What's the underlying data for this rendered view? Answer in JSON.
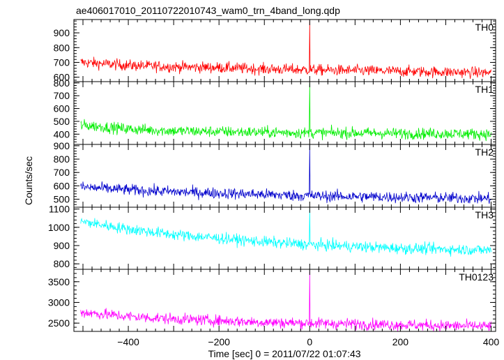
{
  "chart_data": {
    "type": "line",
    "title": "ae406017010_20110722010743_wam0_trn_4band_long.qdp",
    "xlabel": "Time [sec] 0 = 2011/07/22 01:07:43",
    "ylabel": "Counts/sec",
    "xlim": [
      -520,
      410
    ],
    "xticks": [
      -400,
      -200,
      0,
      200,
      400
    ],
    "grid": false,
    "panels": [
      {
        "name": "TH0",
        "color": "#ff0000",
        "ylim": [
          570,
          990
        ],
        "yticks": [
          600,
          700,
          800,
          900
        ],
        "spike": {
          "x": 0,
          "y": 980
        },
        "series": {
          "x": [
            -500,
            -400,
            -300,
            -200,
            -100,
            0,
            100,
            200,
            300,
            400
          ],
          "y": [
            700,
            680,
            670,
            665,
            655,
            650,
            645,
            640,
            635,
            630
          ]
        }
      },
      {
        "name": "TH1",
        "color": "#00ee00",
        "ylim": [
          320,
          810
        ],
        "yticks": [
          400,
          500,
          600,
          700,
          800
        ],
        "spike": {
          "x": 0,
          "y": 800
        },
        "series": {
          "x": [
            -500,
            -400,
            -300,
            -200,
            -100,
            0,
            100,
            200,
            300,
            400
          ],
          "y": [
            470,
            440,
            425,
            420,
            415,
            410,
            410,
            405,
            405,
            400
          ]
        }
      },
      {
        "name": "TH2",
        "color": "#0000cc",
        "ylim": [
          440,
          910
        ],
        "yticks": [
          500,
          600,
          700,
          800,
          900
        ],
        "spike": {
          "x": 0,
          "y": 905
        },
        "series": {
          "x": [
            -500,
            -400,
            -300,
            -200,
            -100,
            0,
            100,
            200,
            300,
            400
          ],
          "y": [
            590,
            570,
            555,
            545,
            535,
            525,
            520,
            515,
            510,
            505
          ]
        }
      },
      {
        "name": "TH3",
        "color": "#00ffff",
        "ylim": [
          770,
          1110
        ],
        "yticks": [
          800,
          900,
          1000,
          1100
        ],
        "spike": {
          "x": 0,
          "y": 1100
        },
        "series": {
          "x": [
            -500,
            -400,
            -300,
            -200,
            -100,
            0,
            100,
            200,
            300,
            400
          ],
          "y": [
            1030,
            990,
            960,
            940,
            920,
            905,
            895,
            885,
            880,
            875
          ]
        }
      },
      {
        "name": "TH0123",
        "color": "#ff00ff",
        "ylim": [
          2300,
          3800
        ],
        "yticks": [
          2500,
          3000,
          3500
        ],
        "spike": {
          "x": 0,
          "y": 3750
        },
        "series": {
          "x": [
            -500,
            -400,
            -300,
            -200,
            -100,
            0,
            100,
            200,
            300,
            400
          ],
          "y": [
            2760,
            2660,
            2600,
            2560,
            2520,
            2500,
            2480,
            2460,
            2440,
            2420
          ]
        }
      }
    ]
  }
}
